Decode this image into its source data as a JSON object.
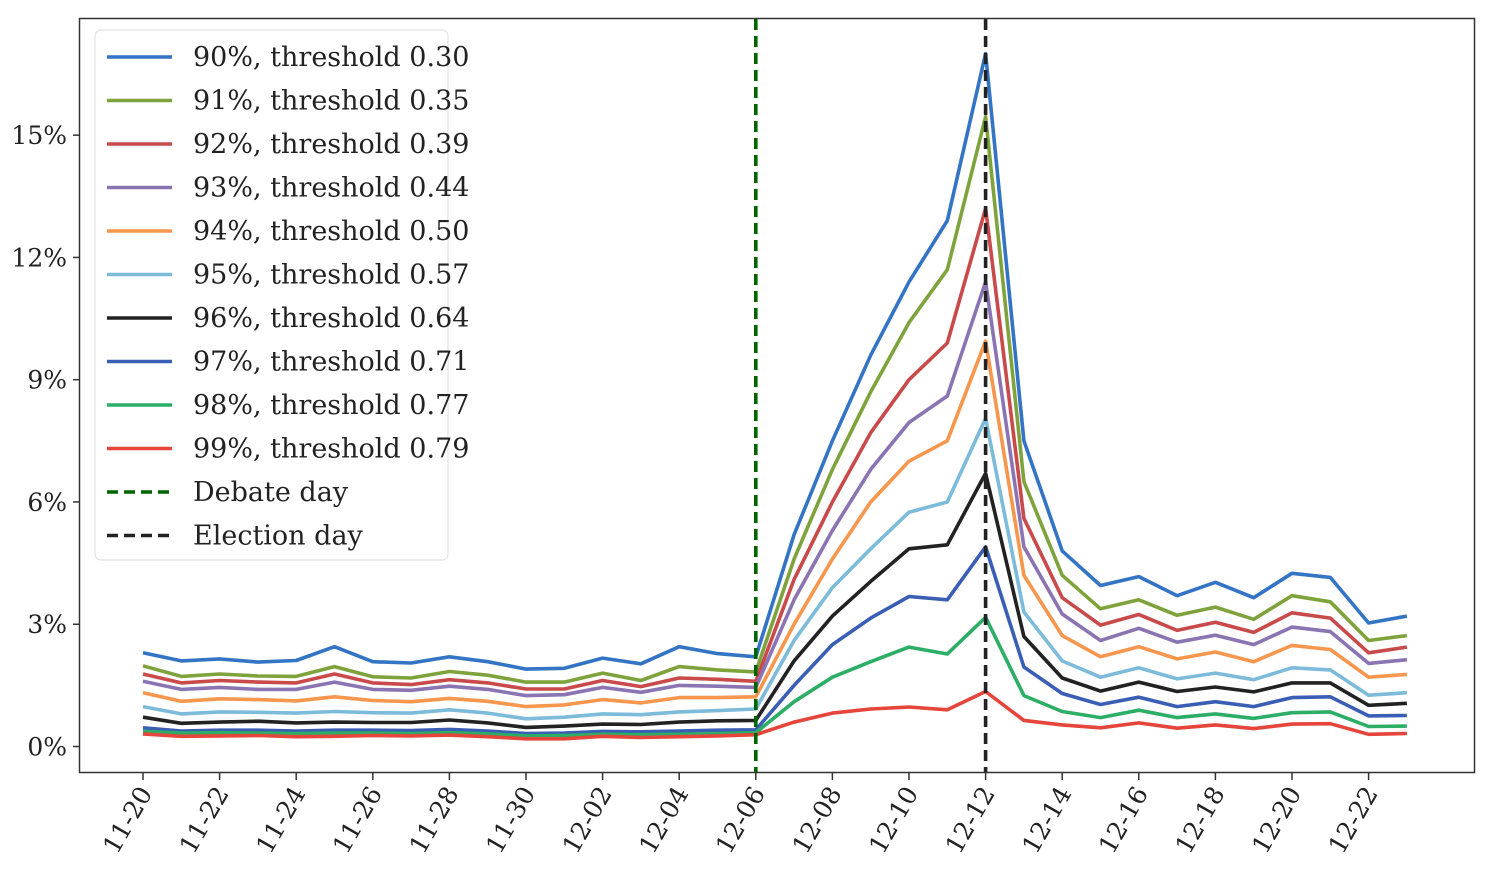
{
  "chart_data": {
    "type": "line",
    "title": "",
    "xlabel": "",
    "ylabel": "",
    "ylim": [
      -0.65,
      17.85
    ],
    "y_ticks": [
      0,
      3,
      6,
      9,
      12,
      15
    ],
    "y_tick_labels": [
      "0%",
      "3%",
      "6%",
      "9%",
      "12%",
      "15%"
    ],
    "x": [
      "11-20",
      "11-21",
      "11-22",
      "11-23",
      "11-24",
      "11-25",
      "11-26",
      "11-27",
      "11-28",
      "11-29",
      "11-30",
      "12-01",
      "12-02",
      "12-03",
      "12-04",
      "12-05",
      "12-06",
      "12-07",
      "12-08",
      "12-09",
      "12-10",
      "12-11",
      "12-12",
      "12-13",
      "12-14",
      "12-15",
      "12-16",
      "12-17",
      "12-18",
      "12-19",
      "12-20",
      "12-21",
      "12-22",
      "12-23"
    ],
    "x_tick_labels": [
      "11-20",
      "11-22",
      "11-24",
      "11-26",
      "11-28",
      "11-30",
      "12-02",
      "12-04",
      "12-06",
      "12-08",
      "12-10",
      "12-12",
      "12-14",
      "12-16",
      "12-18",
      "12-20",
      "12-22"
    ],
    "grid": false,
    "legend_position": "top-left",
    "vlines": [
      {
        "name": "Debate day",
        "x": "12-06",
        "color": "#006400"
      },
      {
        "name": "Election day",
        "x": "12-12",
        "color": "#222222"
      }
    ],
    "series": [
      {
        "name": "90%, threshold 0.30",
        "color": "#3474C4",
        "values": [
          2.3,
          2.1,
          2.15,
          2.07,
          2.11,
          2.45,
          2.08,
          2.05,
          2.2,
          2.08,
          1.9,
          1.92,
          2.17,
          2.03,
          2.45,
          2.28,
          2.2,
          5.2,
          7.5,
          9.6,
          11.4,
          12.9,
          17.0,
          7.5,
          4.8,
          3.95,
          4.17,
          3.7,
          4.03,
          3.65,
          4.25,
          4.15,
          3.03,
          3.2
        ]
      },
      {
        "name": "91%, threshold 0.35",
        "color": "#7FA33C",
        "values": [
          1.98,
          1.72,
          1.78,
          1.73,
          1.72,
          1.96,
          1.71,
          1.68,
          1.84,
          1.75,
          1.58,
          1.58,
          1.8,
          1.62,
          1.96,
          1.88,
          1.83,
          4.6,
          6.8,
          8.7,
          10.4,
          11.7,
          15.45,
          6.5,
          4.2,
          3.38,
          3.6,
          3.22,
          3.42,
          3.12,
          3.7,
          3.55,
          2.6,
          2.72
        ]
      },
      {
        "name": "92%, threshold 0.39",
        "color": "#C94A4A",
        "values": [
          1.78,
          1.56,
          1.62,
          1.58,
          1.56,
          1.78,
          1.56,
          1.52,
          1.64,
          1.56,
          1.41,
          1.41,
          1.62,
          1.47,
          1.68,
          1.65,
          1.6,
          4.1,
          6.0,
          7.7,
          9.0,
          9.9,
          13.2,
          5.6,
          3.65,
          2.98,
          3.24,
          2.85,
          3.05,
          2.8,
          3.28,
          3.15,
          2.3,
          2.44
        ]
      },
      {
        "name": "93%, threshold 0.44",
        "color": "#8A74B2",
        "values": [
          1.6,
          1.4,
          1.45,
          1.4,
          1.4,
          1.58,
          1.4,
          1.38,
          1.48,
          1.4,
          1.25,
          1.27,
          1.45,
          1.33,
          1.5,
          1.48,
          1.45,
          3.6,
          5.3,
          6.8,
          7.95,
          8.6,
          11.4,
          4.9,
          3.25,
          2.6,
          2.9,
          2.56,
          2.73,
          2.5,
          2.93,
          2.82,
          2.04,
          2.13
        ]
      },
      {
        "name": "94%, threshold 0.50",
        "color": "#F7964D",
        "values": [
          1.32,
          1.11,
          1.17,
          1.15,
          1.12,
          1.22,
          1.13,
          1.1,
          1.18,
          1.11,
          0.98,
          1.02,
          1.15,
          1.07,
          1.2,
          1.2,
          1.22,
          3.0,
          4.6,
          6.0,
          7.0,
          7.5,
          9.95,
          4.2,
          2.72,
          2.2,
          2.45,
          2.15,
          2.32,
          2.08,
          2.48,
          2.38,
          1.7,
          1.77
        ]
      },
      {
        "name": "95%, threshold 0.57",
        "color": "#7CBBDA",
        "values": [
          0.98,
          0.8,
          0.85,
          0.84,
          0.82,
          0.86,
          0.83,
          0.82,
          0.9,
          0.82,
          0.68,
          0.72,
          0.8,
          0.78,
          0.85,
          0.88,
          0.92,
          2.6,
          3.9,
          4.85,
          5.75,
          6.0,
          8.05,
          3.3,
          2.1,
          1.7,
          1.93,
          1.66,
          1.8,
          1.64,
          1.93,
          1.88,
          1.26,
          1.32
        ]
      },
      {
        "name": "96%, threshold 0.64",
        "color": "#222222",
        "values": [
          0.72,
          0.57,
          0.6,
          0.62,
          0.58,
          0.6,
          0.59,
          0.59,
          0.65,
          0.58,
          0.47,
          0.5,
          0.55,
          0.54,
          0.6,
          0.63,
          0.64,
          2.1,
          3.2,
          4.05,
          4.85,
          4.95,
          6.7,
          2.7,
          1.68,
          1.36,
          1.58,
          1.35,
          1.46,
          1.34,
          1.56,
          1.56,
          1.01,
          1.06
        ]
      },
      {
        "name": "97%, threshold 0.71",
        "color": "#3B5EB5",
        "values": [
          0.46,
          0.38,
          0.4,
          0.4,
          0.38,
          0.4,
          0.4,
          0.39,
          0.42,
          0.38,
          0.32,
          0.33,
          0.37,
          0.36,
          0.38,
          0.4,
          0.41,
          1.5,
          2.5,
          3.15,
          3.68,
          3.6,
          4.9,
          1.95,
          1.3,
          1.03,
          1.21,
          0.98,
          1.1,
          0.98,
          1.2,
          1.22,
          0.75,
          0.76
        ]
      },
      {
        "name": "98%, threshold 0.77",
        "color": "#2CAE66",
        "values": [
          0.37,
          0.33,
          0.34,
          0.33,
          0.32,
          0.33,
          0.33,
          0.32,
          0.34,
          0.31,
          0.26,
          0.27,
          0.3,
          0.29,
          0.3,
          0.32,
          0.34,
          1.1,
          1.7,
          2.08,
          2.44,
          2.27,
          3.17,
          1.25,
          0.86,
          0.71,
          0.89,
          0.71,
          0.8,
          0.69,
          0.83,
          0.85,
          0.49,
          0.5
        ]
      },
      {
        "name": "99%, threshold 0.79",
        "color": "#E5453A",
        "values": [
          0.31,
          0.25,
          0.26,
          0.27,
          0.24,
          0.25,
          0.27,
          0.26,
          0.28,
          0.24,
          0.19,
          0.19,
          0.25,
          0.22,
          0.24,
          0.26,
          0.29,
          0.6,
          0.82,
          0.92,
          0.97,
          0.9,
          1.35,
          0.64,
          0.53,
          0.46,
          0.58,
          0.45,
          0.53,
          0.44,
          0.55,
          0.56,
          0.3,
          0.32
        ]
      }
    ]
  }
}
